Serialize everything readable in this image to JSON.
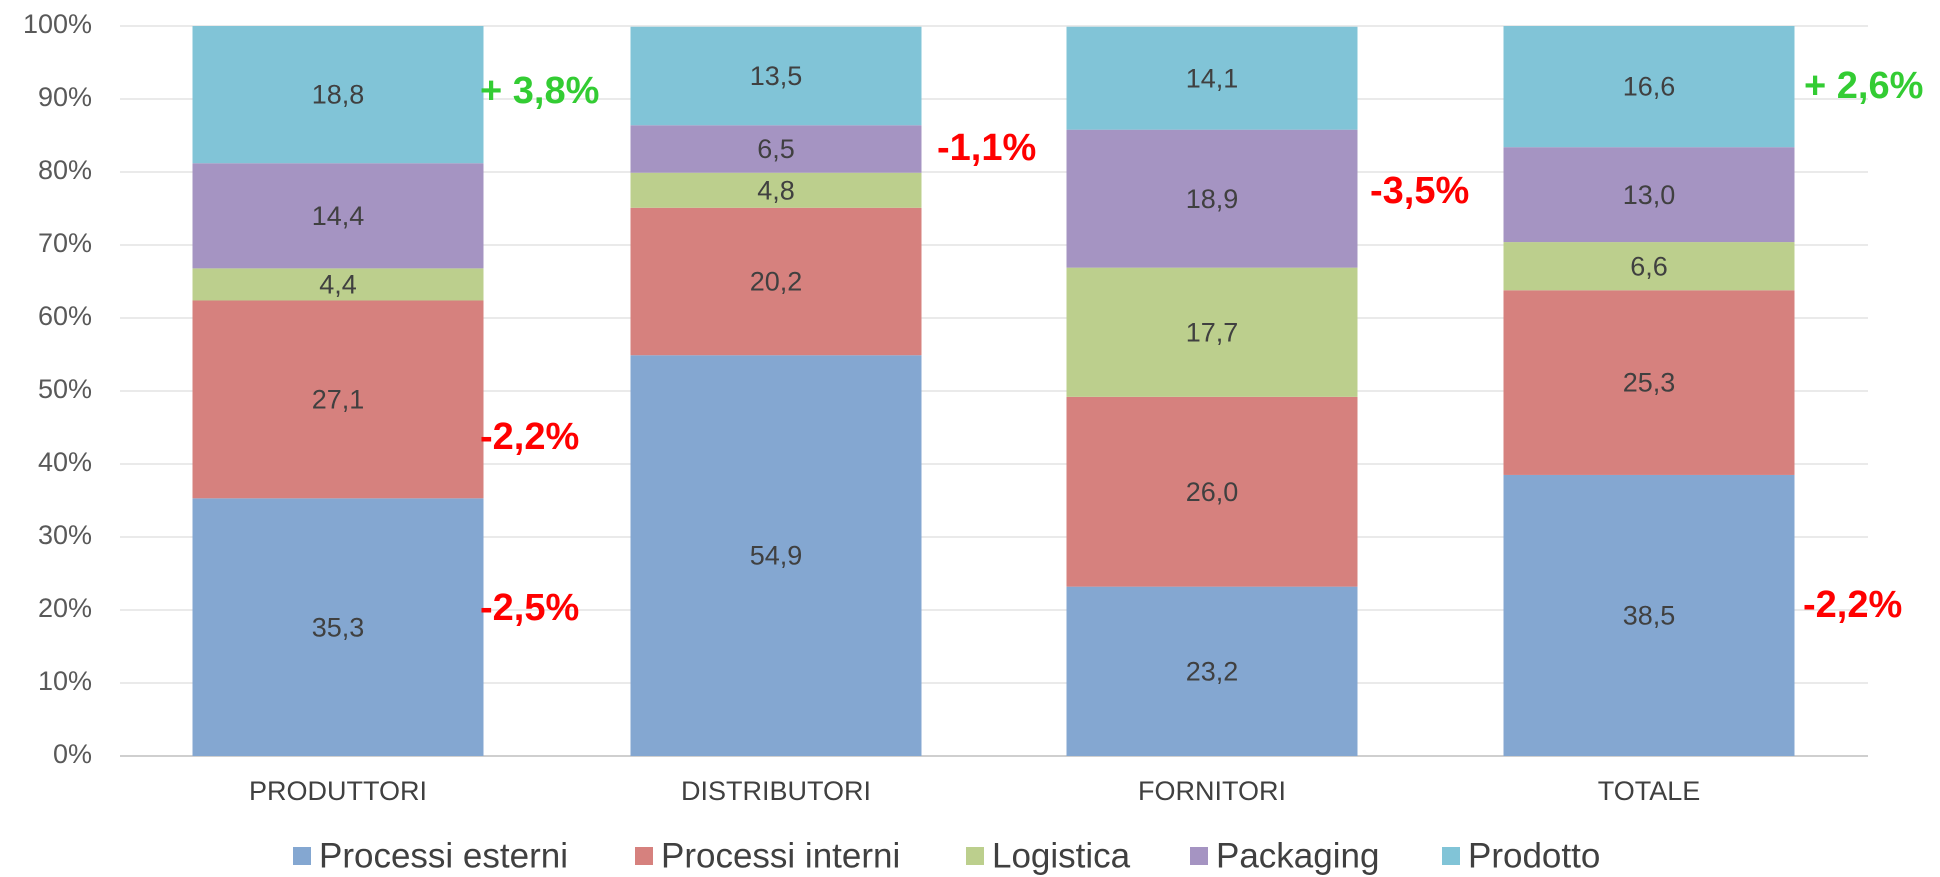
{
  "chart_data": {
    "type": "stacked_bar_100",
    "categories": [
      "PRODUTTORI",
      "DISTRIBUTORI",
      "FORNITORI",
      "TOTALE"
    ],
    "series": [
      {
        "name": "Processi esterni",
        "color": "#84a7d1",
        "values": [
          35.3,
          54.9,
          23.2,
          38.5
        ],
        "value_labels": [
          "35,3",
          "54,9",
          "23,2",
          "38,5"
        ]
      },
      {
        "name": "Processi interni",
        "color": "#d6817e",
        "values": [
          27.1,
          20.2,
          26.0,
          25.3
        ],
        "value_labels": [
          "27,1",
          "20,2",
          "26,0",
          "25,3"
        ]
      },
      {
        "name": "Logistica",
        "color": "#bccf8d",
        "values": [
          4.4,
          4.8,
          17.7,
          6.6
        ],
        "value_labels": [
          "4,4",
          "4,8",
          "17,7",
          "6,6"
        ]
      },
      {
        "name": "Packaging",
        "color": "#a594c2",
        "values": [
          14.4,
          6.5,
          18.9,
          13.0
        ],
        "value_labels": [
          "14,4",
          "6,5",
          "18,9",
          "13,0"
        ]
      },
      {
        "name": "Prodotto",
        "color": "#81c4d7",
        "values": [
          18.8,
          13.5,
          14.1,
          16.6
        ],
        "value_labels": [
          "18,8",
          "13,5",
          "14,1",
          "16,6"
        ]
      }
    ],
    "ylim": [
      0,
      100
    ],
    "yticks": [
      {
        "value": 0,
        "label": "0%"
      },
      {
        "value": 10,
        "label": "10%"
      },
      {
        "value": 20,
        "label": "20%"
      },
      {
        "value": 30,
        "label": "30%"
      },
      {
        "value": 40,
        "label": "40%"
      },
      {
        "value": 50,
        "label": "50%"
      },
      {
        "value": 60,
        "label": "60%"
      },
      {
        "value": 70,
        "label": "70%"
      },
      {
        "value": 80,
        "label": "80%"
      },
      {
        "value": 90,
        "label": "90%"
      },
      {
        "value": 100,
        "label": "100%"
      }
    ],
    "grid": true,
    "legend": "bottom",
    "annotations": [
      {
        "text": "+ 3,8%",
        "color": "#33cc33"
      },
      {
        "text": "-2,2%",
        "color": "#ff0000"
      },
      {
        "text": "-2,5%",
        "color": "#ff0000"
      },
      {
        "text": "-1,1%",
        "color": "#ff0000"
      },
      {
        "text": "-3,5%",
        "color": "#ff0000"
      },
      {
        "text": "+ 2,6%",
        "color": "#33cc33"
      },
      {
        "text": "-2,2%",
        "color": "#ff0000"
      }
    ]
  }
}
